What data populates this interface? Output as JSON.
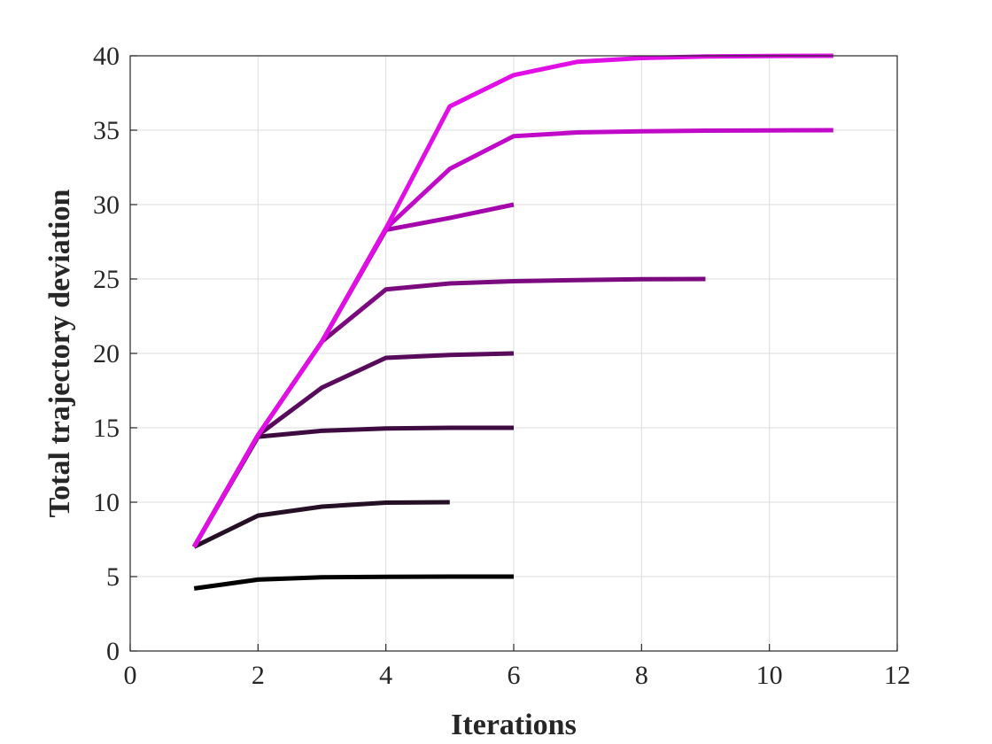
{
  "chart_data": {
    "type": "line",
    "title": "",
    "xlabel": "Iterations",
    "ylabel": "Total trajectory deviation",
    "xlim": [
      0,
      12
    ],
    "ylim": [
      0,
      40
    ],
    "xticks": [
      0,
      2,
      4,
      6,
      8,
      10,
      12
    ],
    "yticks": [
      0,
      5,
      10,
      15,
      20,
      25,
      30,
      35,
      40
    ],
    "grid": true,
    "legend": "none",
    "series": [
      {
        "color": "#000000",
        "x": [
          1,
          2,
          3,
          4,
          5,
          6
        ],
        "y": [
          4.2,
          4.8,
          4.95,
          4.98,
          5.0,
          5.0
        ]
      },
      {
        "color": "#240f24",
        "x": [
          1,
          2,
          3,
          4,
          5
        ],
        "y": [
          7.0,
          9.1,
          9.7,
          9.97,
          10.0
        ]
      },
      {
        "color": "#3e0b40",
        "x": [
          1,
          2,
          3,
          4,
          5,
          6
        ],
        "y": [
          7.0,
          14.4,
          14.8,
          14.95,
          15.0,
          15.0
        ]
      },
      {
        "color": "#580b5b",
        "x": [
          1,
          2,
          3,
          4,
          5,
          6
        ],
        "y": [
          7.0,
          14.5,
          17.7,
          19.7,
          19.9,
          20.0
        ]
      },
      {
        "color": "#7a0a7e",
        "x": [
          1,
          2,
          3,
          4,
          5,
          6,
          7,
          8,
          9
        ],
        "y": [
          7.0,
          14.5,
          20.8,
          24.3,
          24.7,
          24.85,
          24.93,
          24.98,
          25.0
        ]
      },
      {
        "color": "#a406ab",
        "x": [
          1,
          2,
          3,
          4,
          5,
          6
        ],
        "y": [
          7.0,
          14.5,
          20.8,
          28.3,
          29.1,
          30.0
        ]
      },
      {
        "color": "#c10ac8",
        "x": [
          1,
          2,
          3,
          4,
          5,
          6,
          7,
          8,
          9,
          10,
          11
        ],
        "y": [
          7.0,
          14.5,
          20.8,
          28.4,
          32.4,
          34.6,
          34.85,
          34.93,
          34.97,
          34.99,
          35.0
        ]
      },
      {
        "color": "#e10ee6",
        "x": [
          1,
          2,
          3,
          4,
          5,
          6,
          7,
          8,
          9,
          10,
          11
        ],
        "y": [
          7.0,
          14.5,
          20.8,
          28.4,
          36.6,
          38.7,
          39.6,
          39.85,
          39.95,
          39.99,
          40.0
        ]
      }
    ]
  }
}
